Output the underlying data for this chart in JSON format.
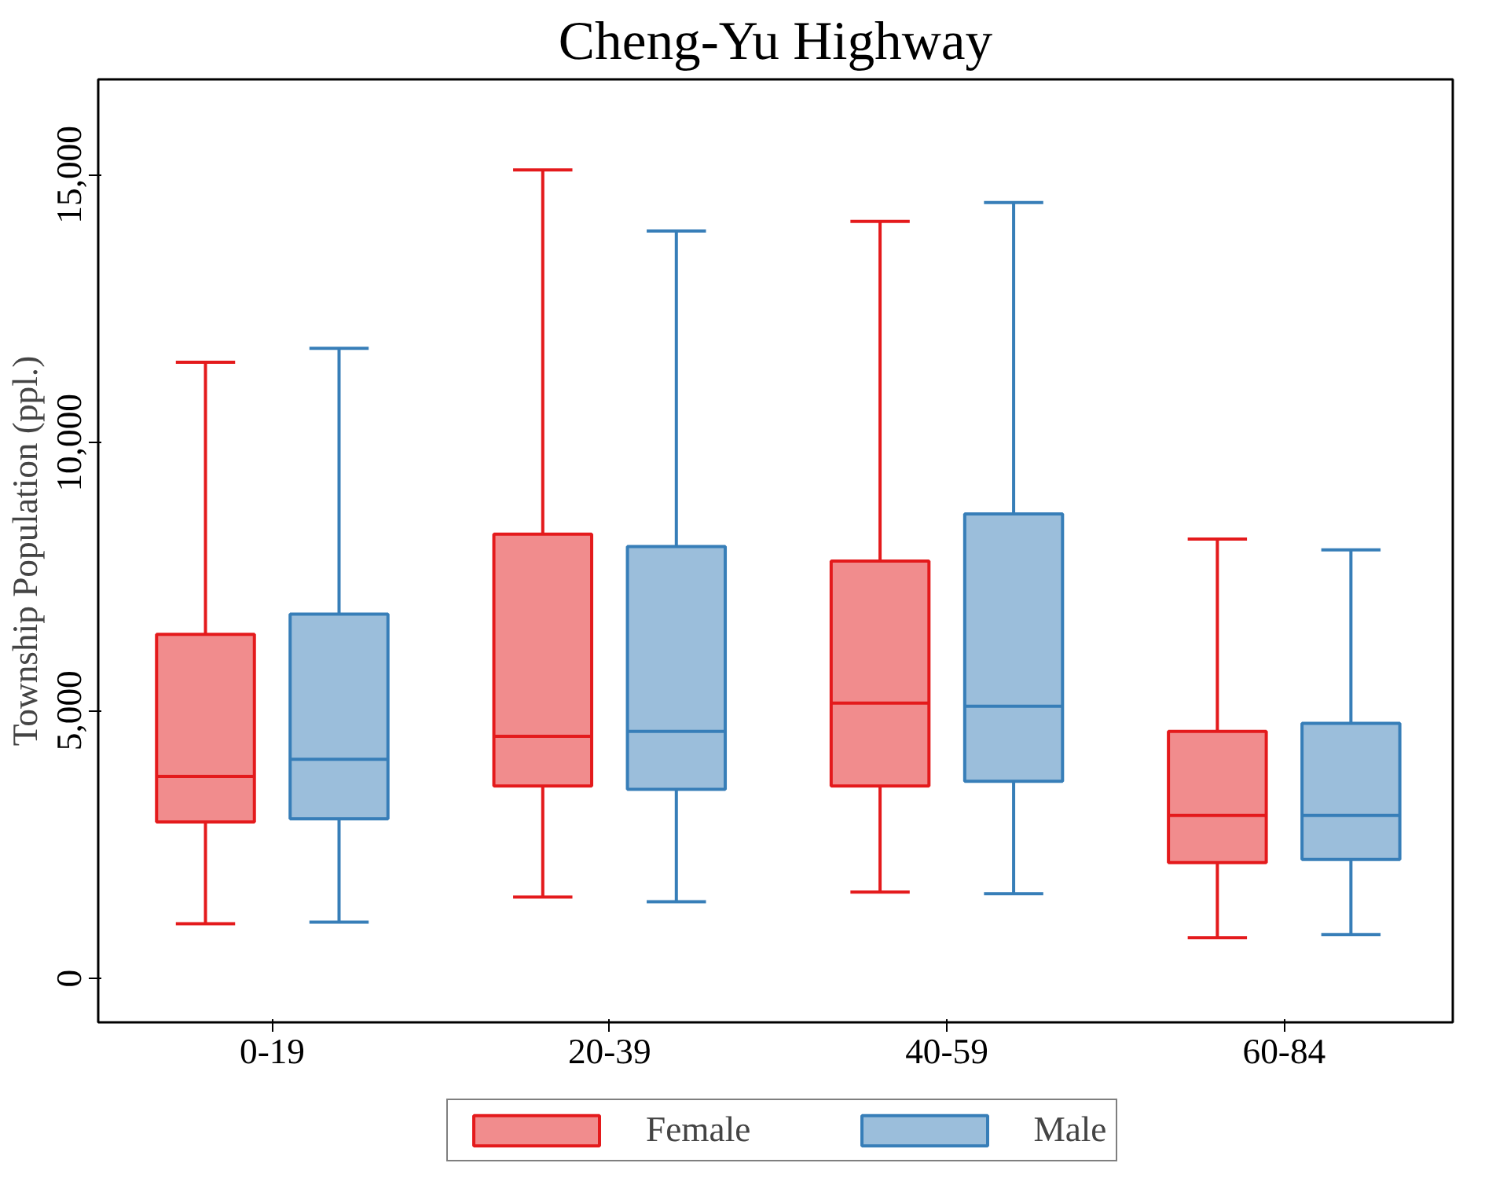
{
  "chart_data": {
    "type": "box",
    "title": "Cheng-Yu Highway",
    "ylabel": "Township Population (ppl.)",
    "categories": [
      "0-19",
      "20-39",
      "40-59",
      "60-84"
    ],
    "ylim": [
      -820,
      16780
    ],
    "yticks": [
      0,
      {
        "value": 5000,
        "label": "5,000"
      },
      {
        "value": 10000,
        "label": "10,000"
      },
      {
        "value": 15000,
        "label": "15,000"
      }
    ],
    "grid": false,
    "legend": "bottom",
    "series": [
      {
        "name": "Female",
        "color": "#e41a1c",
        "boxes": [
          {
            "low": 1020,
            "q1": 2920,
            "median": 3770,
            "q3": 6420,
            "high": 11500
          },
          {
            "low": 1520,
            "q1": 3590,
            "median": 4520,
            "q3": 8290,
            "high": 15090
          },
          {
            "low": 1610,
            "q1": 3590,
            "median": 5140,
            "q3": 7790,
            "high": 14130
          },
          {
            "low": 760,
            "q1": 2160,
            "median": 3040,
            "q3": 4610,
            "high": 8200
          }
        ]
      },
      {
        "name": "Male",
        "color": "#377eb8",
        "boxes": [
          {
            "low": 1050,
            "q1": 2980,
            "median": 4090,
            "q3": 6800,
            "high": 11760
          },
          {
            "low": 1430,
            "q1": 3530,
            "median": 4610,
            "q3": 8060,
            "high": 13950
          },
          {
            "low": 1580,
            "q1": 3680,
            "median": 5080,
            "q3": 8670,
            "high": 14480
          },
          {
            "low": 820,
            "q1": 2220,
            "median": 3040,
            "q3": 4760,
            "high": 8000
          }
        ]
      }
    ]
  }
}
